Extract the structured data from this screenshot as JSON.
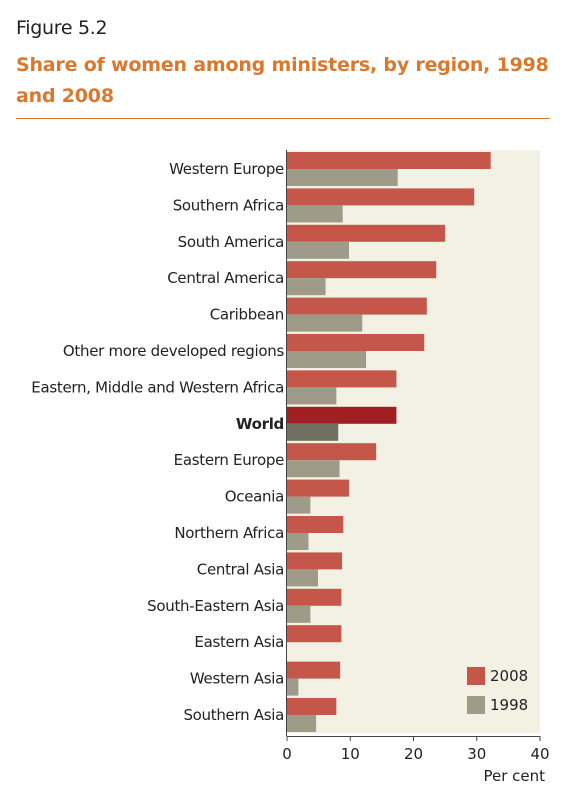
{
  "figure_label": "Figure 5.2",
  "title": "Share of women among ministers, by region, 1998 and 2008",
  "chart_data": {
    "type": "bar",
    "orientation": "horizontal",
    "title": "Share of women among ministers, by region, 1998 and 2008",
    "xlabel": "Per cent",
    "xlim": [
      0,
      40
    ],
    "xticks": [
      0,
      10,
      20,
      30,
      40
    ],
    "categories": [
      "Western Europe",
      "Southern Africa",
      "South America",
      "Central America",
      "Caribbean",
      "Other more developed regions",
      "Eastern, Middle and Western Africa",
      "World",
      "Eastern Europe",
      "Oceania",
      "Northern Africa",
      "Central Asia",
      "South-Eastern Asia",
      "Eastern Asia",
      "Western Asia",
      "Southern Asia"
    ],
    "highlight_category": "World",
    "series": [
      {
        "name": "2008",
        "color": "#c4574a",
        "highlight_color": "#a11e22",
        "values": [
          32.2,
          29.6,
          25,
          23.6,
          22.1,
          21.7,
          17.3,
          17.3,
          14.1,
          9.8,
          8.9,
          8.7,
          8.6,
          8.6,
          8.4,
          7.8
        ]
      },
      {
        "name": "1998",
        "color": "#9e9b89",
        "highlight_color": "#707060",
        "values": [
          17.5,
          8.8,
          9.8,
          6.1,
          11.9,
          12.5,
          7.8,
          8.1,
          8.3,
          3.7,
          3.4,
          4.9,
          3.7,
          0,
          1.8,
          4.6
        ]
      }
    ],
    "background_color": "#f2f1e4",
    "grid": false,
    "legend_position": "bottom-right"
  }
}
